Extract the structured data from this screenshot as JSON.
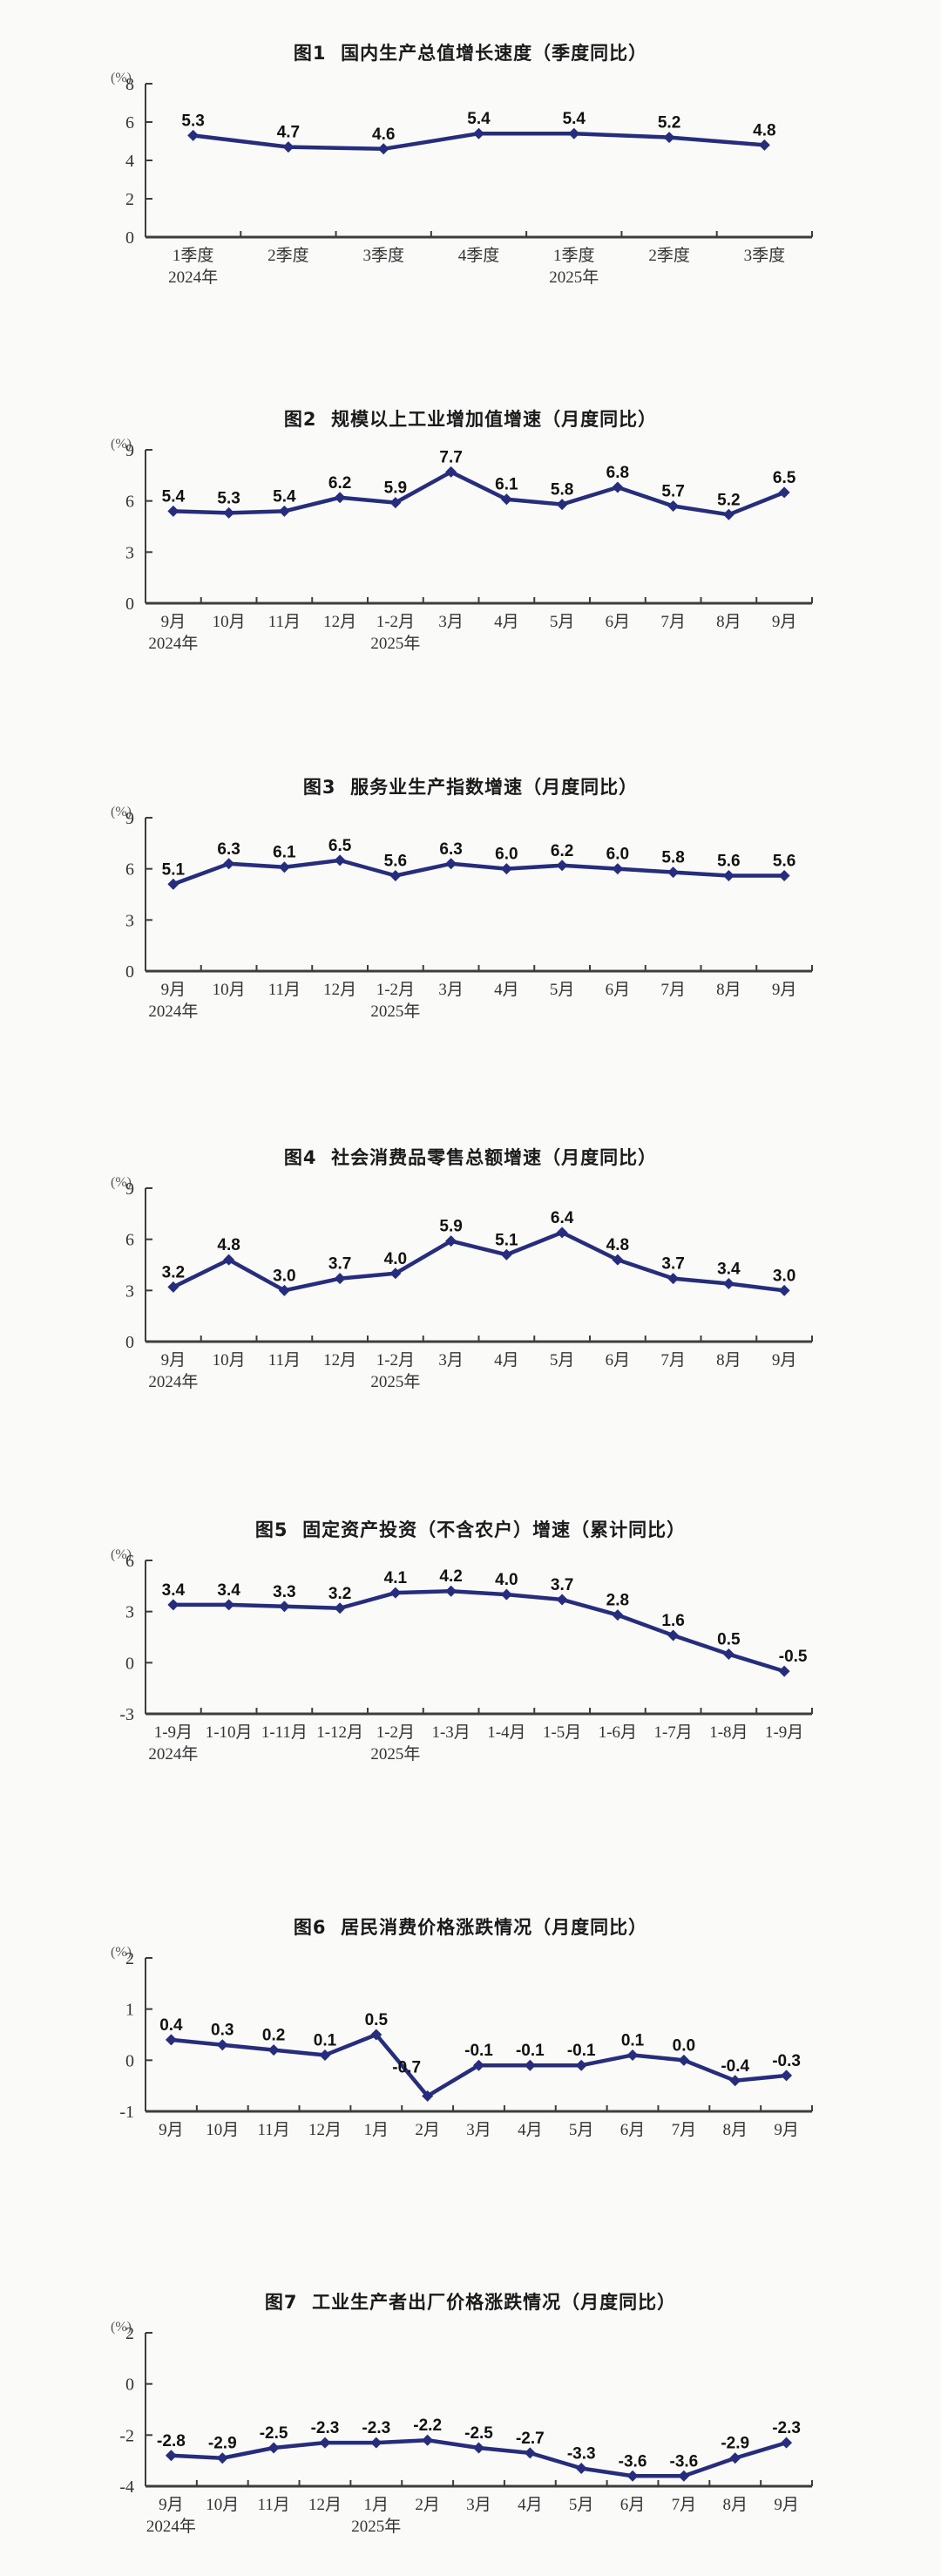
{
  "style": {
    "line_color": "#262d7c",
    "marker_color": "#262d7c",
    "data_label_color": "#111111",
    "axis_color": "#3d3d3d",
    "tick_label_color": "#333333",
    "background": "#fafaf8"
  },
  "chart_data": [
    {
      "type": "line",
      "title": "图1  国内生产总值增长速度（季度同比）",
      "unit": "(%)",
      "ylim": [
        0,
        8
      ],
      "yticks": [
        0,
        2,
        4,
        6,
        8
      ],
      "categories": [
        "1季度",
        "2季度",
        "3季度",
        "4季度",
        "1季度",
        "2季度",
        "3季度"
      ],
      "year_labels": [
        "2024年",
        "",
        "",
        "",
        "2025年",
        "",
        ""
      ],
      "values": [
        5.3,
        4.7,
        4.6,
        5.4,
        5.4,
        5.2,
        4.8
      ],
      "legend": "none",
      "grid": "off"
    },
    {
      "type": "line",
      "title": "图2  规模以上工业增加值增速（月度同比）",
      "unit": "(%)",
      "ylim": [
        0,
        9
      ],
      "yticks": [
        0,
        3,
        6,
        9
      ],
      "categories": [
        "9月",
        "10月",
        "11月",
        "12月",
        "1-2月",
        "3月",
        "4月",
        "5月",
        "6月",
        "7月",
        "8月",
        "9月"
      ],
      "year_labels": [
        "2024年",
        "",
        "",
        "",
        "2025年",
        "",
        "",
        "",
        "",
        "",
        "",
        ""
      ],
      "values": [
        5.4,
        5.3,
        5.4,
        6.2,
        5.9,
        7.7,
        6.1,
        5.8,
        6.8,
        5.7,
        5.2,
        6.5
      ],
      "legend": "none",
      "grid": "off"
    },
    {
      "type": "line",
      "title": "图3  服务业生产指数增速（月度同比）",
      "unit": "(%)",
      "ylim": [
        0,
        9
      ],
      "yticks": [
        0,
        3,
        6,
        9
      ],
      "categories": [
        "9月",
        "10月",
        "11月",
        "12月",
        "1-2月",
        "3月",
        "4月",
        "5月",
        "6月",
        "7月",
        "8月",
        "9月"
      ],
      "year_labels": [
        "2024年",
        "",
        "",
        "",
        "2025年",
        "",
        "",
        "",
        "",
        "",
        "",
        ""
      ],
      "values": [
        5.1,
        6.3,
        6.1,
        6.5,
        5.6,
        6.3,
        6.0,
        6.2,
        6.0,
        5.8,
        5.6,
        5.6
      ],
      "legend": "none",
      "grid": "off"
    },
    {
      "type": "line",
      "title": "图4  社会消费品零售总额增速（月度同比）",
      "unit": "(%)",
      "ylim": [
        0,
        9
      ],
      "yticks": [
        0,
        3,
        6,
        9
      ],
      "categories": [
        "9月",
        "10月",
        "11月",
        "12月",
        "1-2月",
        "3月",
        "4月",
        "5月",
        "6月",
        "7月",
        "8月",
        "9月"
      ],
      "year_labels": [
        "2024年",
        "",
        "",
        "",
        "2025年",
        "",
        "",
        "",
        "",
        "",
        "",
        ""
      ],
      "values": [
        3.2,
        4.8,
        3.0,
        3.7,
        4.0,
        5.9,
        5.1,
        6.4,
        4.8,
        3.7,
        3.4,
        3.0
      ],
      "legend": "none",
      "grid": "off"
    },
    {
      "type": "line",
      "title": "图5  固定资产投资（不含农户）增速（累计同比）",
      "unit": "(%)",
      "ylim": [
        -3,
        6
      ],
      "yticks": [
        -3,
        0,
        3,
        6
      ],
      "categories": [
        "1-9月",
        "1-10月",
        "1-11月",
        "1-12月",
        "1-2月",
        "1-3月",
        "1-4月",
        "1-5月",
        "1-6月",
        "1-7月",
        "1-8月",
        "1-9月"
      ],
      "year_labels": [
        "2024年",
        "",
        "",
        "",
        "2025年",
        "",
        "",
        "",
        "",
        "",
        "",
        ""
      ],
      "values": [
        3.4,
        3.4,
        3.3,
        3.2,
        4.1,
        4.2,
        4.0,
        3.7,
        2.8,
        1.6,
        0.5,
        -0.5
      ],
      "label_offsets": {
        "11": [
          10,
          0
        ]
      },
      "legend": "none",
      "grid": "off"
    },
    {
      "type": "line",
      "title": "图6  居民消费价格涨跌情况（月度同比）",
      "unit": "(%)",
      "ylim": [
        -1,
        2
      ],
      "yticks": [
        -1,
        0,
        1,
        2
      ],
      "categories": [
        "9月",
        "10月",
        "11月",
        "12月",
        "1月",
        "2月",
        "3月",
        "4月",
        "5月",
        "6月",
        "7月",
        "8月",
        "9月"
      ],
      "year_labels": [
        "",
        "",
        "",
        "",
        "",
        "",
        "",
        "",
        "",
        "",
        "",
        "",
        ""
      ],
      "values": [
        0.4,
        0.3,
        0.2,
        0.1,
        0.5,
        -0.7,
        -0.1,
        -0.1,
        -0.1,
        0.1,
        0.0,
        -0.4,
        -0.3
      ],
      "label_offsets": {
        "5": [
          -24,
          -16
        ]
      },
      "legend": "none",
      "grid": "off"
    },
    {
      "type": "line",
      "title": "图7  工业生产者出厂价格涨跌情况（月度同比）",
      "unit": "(%)",
      "ylim": [
        -4,
        2
      ],
      "yticks": [
        -4,
        -2,
        0,
        2
      ],
      "categories": [
        "9月",
        "10月",
        "11月",
        "12月",
        "1月",
        "2月",
        "3月",
        "4月",
        "5月",
        "6月",
        "7月",
        "8月",
        "9月"
      ],
      "year_labels": [
        "2024年",
        "",
        "",
        "",
        "2025年",
        "",
        "",
        "",
        "",
        "",
        "",
        "",
        ""
      ],
      "values": [
        -2.8,
        -2.9,
        -2.5,
        -2.3,
        -2.3,
        -2.2,
        -2.5,
        -2.7,
        -3.3,
        -3.6,
        -3.6,
        -2.9,
        -2.3
      ],
      "legend": "none",
      "grid": "off"
    }
  ]
}
